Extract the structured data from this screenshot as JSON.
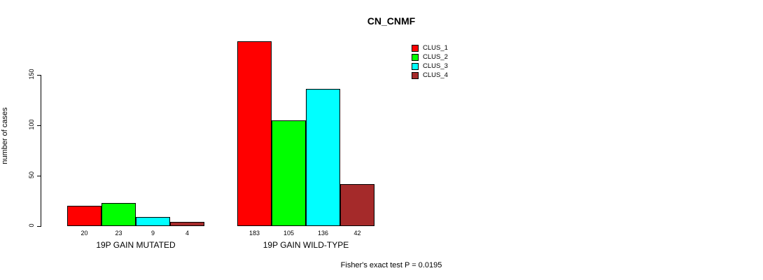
{
  "title": "CN_CNMF",
  "ylabel": "number of cases",
  "annotation": "Fisher's exact test P = 0.0195",
  "chart_data": {
    "type": "bar",
    "title": "CN_CNMF",
    "xlabel": "",
    "ylabel": "number of cases",
    "ylim": [
      0,
      150
    ],
    "yticks": [
      0,
      50,
      100,
      150
    ],
    "grid": false,
    "legend_position": "top-right",
    "categories": [
      "19P GAIN MUTATED",
      "19P GAIN WILD-TYPE"
    ],
    "series": [
      {
        "name": "CLUS_1",
        "color": "#ff0000",
        "values": [
          20,
          183
        ]
      },
      {
        "name": "CLUS_2",
        "color": "#00ff00",
        "values": [
          23,
          105
        ]
      },
      {
        "name": "CLUS_3",
        "color": "#00ffff",
        "values": [
          9,
          136
        ]
      },
      {
        "name": "CLUS_4",
        "color": "#a52a2a",
        "values": [
          4,
          42
        ]
      }
    ],
    "bar_value_labels": [
      [
        20,
        23,
        9,
        4
      ],
      [
        183,
        105,
        136,
        42
      ]
    ],
    "annotation": "Fisher's exact test P = 0.0195"
  }
}
